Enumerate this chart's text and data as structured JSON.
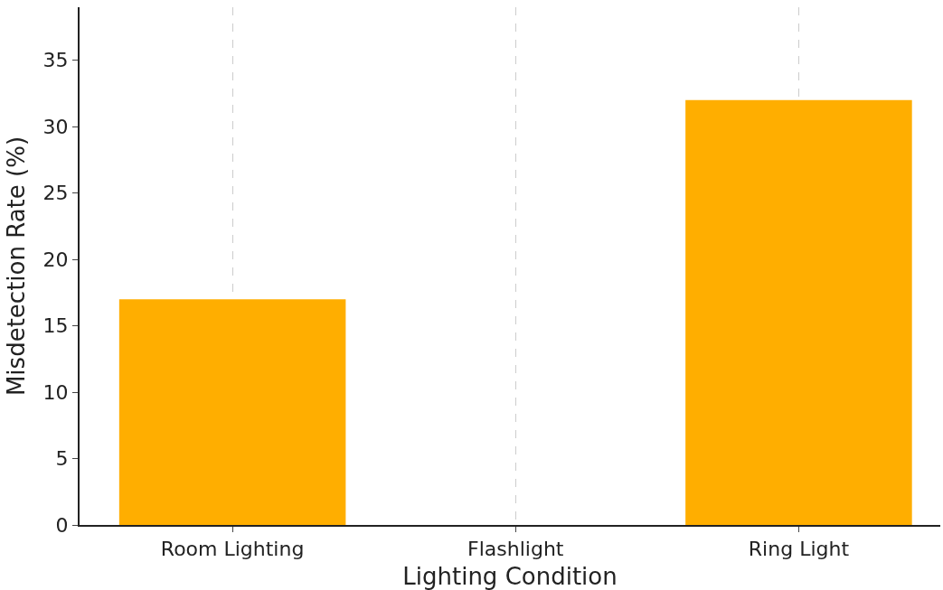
{
  "chart_data": {
    "type": "bar",
    "xlabel": "Lighting Condition",
    "ylabel": "Misdetection Rate (%)",
    "categories": [
      "Room Lighting",
      "Flashlight",
      "Ring Light"
    ],
    "values": [
      17,
      0,
      32
    ],
    "color": "#ffae00",
    "ylim": [
      0,
      39
    ],
    "yticks": [
      0,
      5,
      10,
      15,
      20,
      25,
      30,
      35
    ],
    "grid": "x",
    "line_style": "dashed"
  }
}
